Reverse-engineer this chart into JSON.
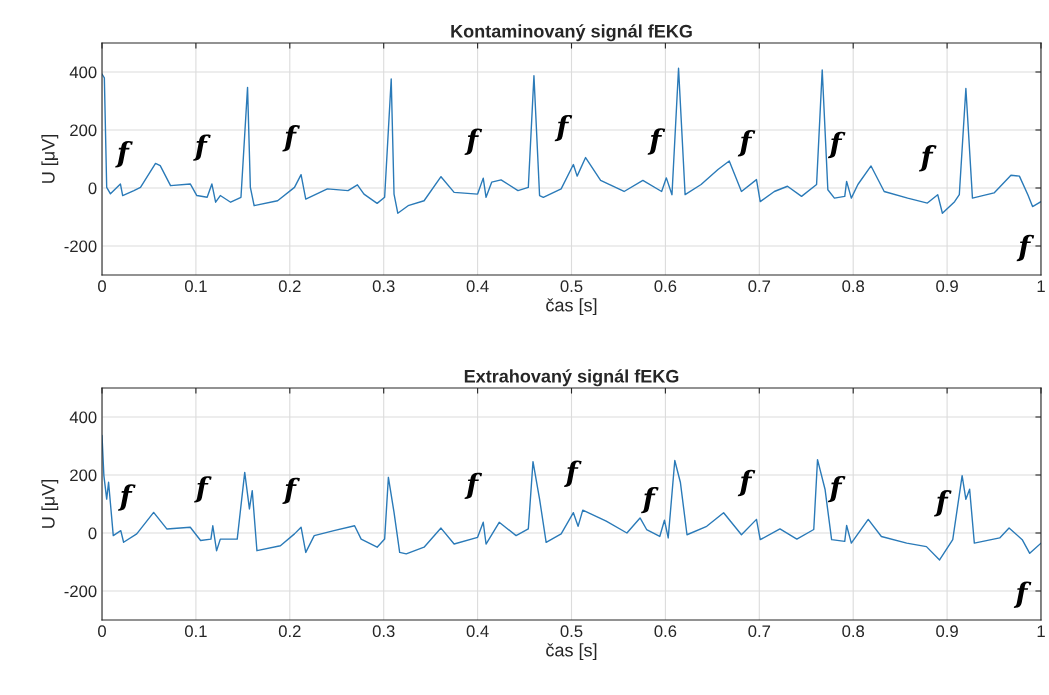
{
  "chart_data": [
    {
      "type": "line",
      "title": "Kontaminovaný signál fEKG",
      "xlabel": "čas [s]",
      "ylabel": "U [μV]",
      "xlim": [
        0,
        1
      ],
      "ylim": [
        -300,
        500
      ],
      "xticks": [
        0,
        0.1,
        0.2,
        0.3,
        0.4,
        0.5,
        0.6,
        0.7,
        0.8,
        0.9,
        1
      ],
      "yticks": [
        -200,
        0,
        200,
        400
      ],
      "grid": true,
      "series": [
        {
          "color": "#2a7ab8",
          "x": [
            0,
            0.0025,
            0.005,
            0.009,
            0.0196,
            0.022,
            0.034,
            0.041,
            0.057,
            0.062,
            0.073,
            0.094,
            0.101,
            0.112,
            0.117,
            0.121,
            0.126,
            0.137,
            0.148,
            0.155,
            0.158,
            0.162,
            0.187,
            0.205,
            0.212,
            0.217,
            0.24,
            0.262,
            0.272,
            0.279,
            0.293,
            0.301,
            0.308,
            0.311,
            0.315,
            0.326,
            0.343,
            0.361,
            0.375,
            0.4,
            0.406,
            0.409,
            0.415,
            0.425,
            0.443,
            0.454,
            0.46,
            0.466,
            0.47,
            0.489,
            0.502,
            0.506,
            0.515,
            0.531,
            0.556,
            0.576,
            0.596,
            0.601,
            0.607,
            0.614,
            0.621,
            0.638,
            0.656,
            0.668,
            0.681,
            0.697,
            0.701,
            0.716,
            0.73,
            0.745,
            0.761,
            0.767,
            0.773,
            0.78,
            0.791,
            0.793,
            0.798,
            0.805,
            0.819,
            0.833,
            0.858,
            0.879,
            0.89,
            0.895,
            0.908,
            0.913,
            0.92,
            0.927,
            0.95,
            0.968,
            0.977,
            0.986,
            0.991,
            1.0
          ],
          "values": [
            393,
            380,
            2,
            -20,
            14,
            -26,
            -9,
            2,
            85,
            77,
            8,
            14,
            -26,
            -32,
            14,
            -49,
            -26,
            -49,
            -32,
            347,
            2,
            -61,
            -44,
            2,
            46,
            -38,
            -3,
            -9,
            11,
            -21,
            -53,
            -32,
            376,
            -21,
            -87,
            -61,
            -44,
            39,
            -15,
            -21,
            34,
            -32,
            20,
            28,
            -9,
            2,
            387,
            -26,
            -32,
            -3,
            81,
            41,
            105,
            26,
            -12,
            26,
            -12,
            35,
            -23,
            413,
            -23,
            12,
            64,
            93,
            -12,
            29,
            -47,
            -12,
            6,
            -29,
            12,
            407,
            -6,
            -35,
            -29,
            23,
            -35,
            12,
            76,
            -12,
            -35,
            -52,
            -23,
            -87,
            -47,
            -23,
            343,
            -35,
            -17,
            44,
            41,
            -23,
            -64,
            -47
          ]
        }
      ],
      "annotations": [
        {
          "text": "f",
          "x": 0.034,
          "y": -9
        },
        {
          "text": "f",
          "x": 0.117,
          "y": 14
        },
        {
          "text": "f",
          "x": 0.212,
          "y": 46
        },
        {
          "text": "f",
          "x": 0.406,
          "y": 34
        },
        {
          "text": "f",
          "x": 0.502,
          "y": 81
        },
        {
          "text": "f",
          "x": 0.601,
          "y": 35
        },
        {
          "text": "f",
          "x": 0.697,
          "y": 29
        },
        {
          "text": "f",
          "x": 0.793,
          "y": 23
        },
        {
          "text": "f",
          "x": 0.89,
          "y": -23
        },
        {
          "text": "f",
          "x": 0.991,
          "y": -64
        }
      ]
    },
    {
      "type": "line",
      "title": "Extrahovaný signál fEKG",
      "xlabel": "čas [s]",
      "ylabel": "U [μV]",
      "xlim": [
        0,
        1
      ],
      "ylim": [
        -300,
        500
      ],
      "xticks": [
        0,
        0.1,
        0.2,
        0.3,
        0.4,
        0.5,
        0.6,
        0.7,
        0.8,
        0.9,
        1
      ],
      "yticks": [
        -200,
        0,
        200,
        400
      ],
      "grid": true,
      "series": [
        {
          "color": "#2a7ab8",
          "x": [
            0,
            0.002,
            0.005,
            0.007,
            0.012,
            0.02,
            0.023,
            0.037,
            0.055,
            0.069,
            0.094,
            0.105,
            0.116,
            0.118,
            0.122,
            0.126,
            0.144,
            0.152,
            0.157,
            0.16,
            0.165,
            0.19,
            0.205,
            0.212,
            0.217,
            0.226,
            0.247,
            0.269,
            0.276,
            0.293,
            0.301,
            0.305,
            0.311,
            0.317,
            0.324,
            0.343,
            0.361,
            0.375,
            0.4,
            0.406,
            0.409,
            0.423,
            0.441,
            0.454,
            0.459,
            0.466,
            0.473,
            0.489,
            0.502,
            0.507,
            0.512,
            0.537,
            0.559,
            0.573,
            0.58,
            0.594,
            0.599,
            0.603,
            0.61,
            0.616,
            0.623,
            0.644,
            0.662,
            0.681,
            0.697,
            0.701,
            0.722,
            0.74,
            0.758,
            0.762,
            0.77,
            0.777,
            0.791,
            0.793,
            0.798,
            0.816,
            0.83,
            0.857,
            0.878,
            0.892,
            0.906,
            0.916,
            0.92,
            0.924,
            0.929,
            0.956,
            0.966,
            0.98,
            0.988,
            1.0
          ],
          "values": [
            336,
            198,
            117,
            175,
            -9,
            8,
            -32,
            -3,
            71,
            14,
            20,
            -26,
            -21,
            25,
            -61,
            -21,
            -21,
            209,
            83,
            146,
            -61,
            -44,
            -3,
            20,
            -67,
            -9,
            8,
            25,
            -21,
            -49,
            -21,
            192,
            71,
            -67,
            -72,
            -49,
            17,
            -38,
            -15,
            37,
            -38,
            37,
            -9,
            14,
            246,
            117,
            -32,
            -3,
            70,
            23,
            79,
            41,
            0,
            52,
            12,
            -12,
            44,
            -17,
            250,
            174,
            -6,
            23,
            70,
            -6,
            47,
            -23,
            14,
            -21,
            12,
            253,
            151,
            -23,
            -29,
            26,
            -35,
            47,
            -12,
            -35,
            -47,
            -93,
            -23,
            198,
            116,
            151,
            -35,
            -17,
            17,
            -23,
            -70,
            -35
          ]
        }
      ],
      "annotations": [
        {
          "text": "f",
          "x": 0.037,
          "y": -3
        },
        {
          "text": "f",
          "x": 0.118,
          "y": 25
        },
        {
          "text": "f",
          "x": 0.212,
          "y": 20
        },
        {
          "text": "f",
          "x": 0.406,
          "y": 37
        },
        {
          "text": "f",
          "x": 0.512,
          "y": 79
        },
        {
          "text": "f",
          "x": 0.594,
          "y": -12
        },
        {
          "text": "f",
          "x": 0.697,
          "y": 47
        },
        {
          "text": "f",
          "x": 0.793,
          "y": 26
        },
        {
          "text": "f",
          "x": 0.906,
          "y": -23
        },
        {
          "text": "f",
          "x": 0.988,
          "y": -70
        }
      ]
    }
  ]
}
